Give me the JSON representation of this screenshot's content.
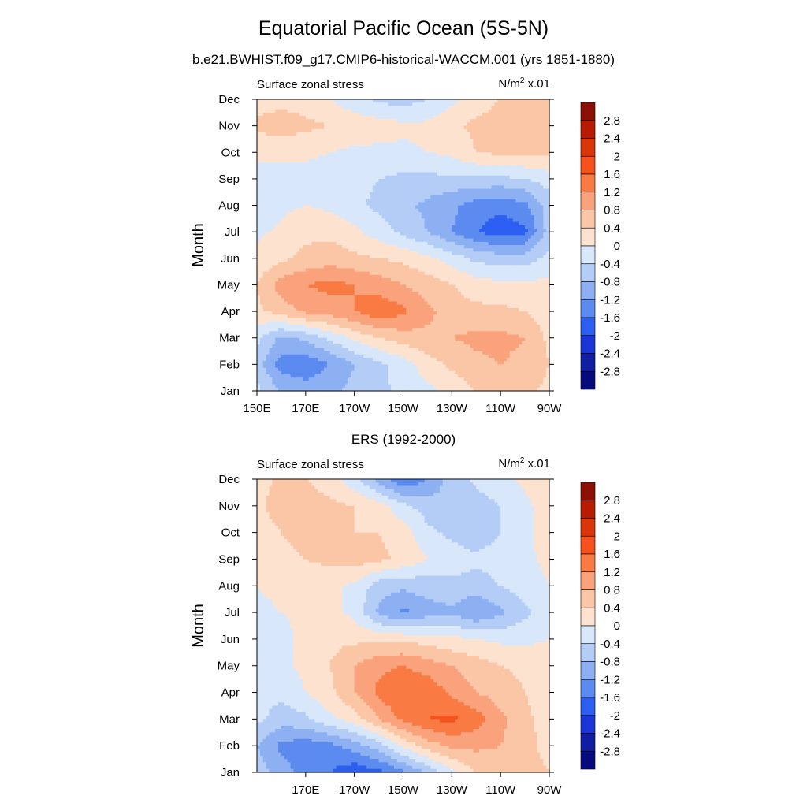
{
  "title": "Equatorial Pacific Ocean (5S-5N)",
  "subtitle": "b.e21.BWHIST.f09_g17.CMIP6-historical-WACCM.001 (yrs 1851-1880)",
  "panels": [
    {
      "title": "",
      "left_label": "Surface zonal stress",
      "right_label_base": "N/m",
      "right_label_sup": "2",
      "right_label_tail": " x.01",
      "ylabel": "Month"
    },
    {
      "title": "ERS (1992-2000)",
      "left_label": "Surface zonal stress",
      "right_label_base": "N/m",
      "right_label_sup": "2",
      "right_label_tail": " x.01",
      "ylabel": "Month"
    }
  ],
  "colorbar": {
    "labels": [
      "2.8",
      "2.4",
      "2",
      "1.6",
      "1.2",
      "0.8",
      "0.4",
      "0",
      "-0.4",
      "-0.8",
      "-1.2",
      "-1.6",
      "-2",
      "-2.4",
      "-2.8"
    ],
    "colors": [
      "#8b0f05",
      "#b71c00",
      "#d93609",
      "#f5521e",
      "#f97a43",
      "#f9a27c",
      "#fbc6a6",
      "#fde3cf",
      "#d8e7fa",
      "#b4cdf7",
      "#8cb0f2",
      "#5c8bf0",
      "#2d5ef2",
      "#1a36d9",
      "#0f1ea3",
      "#050b7a"
    ]
  },
  "chart_data": [
    {
      "type": "contour",
      "title": "Surface zonal stress",
      "units": "N/m2 x.01",
      "xlabel": "",
      "ylabel": "Month",
      "x_tick_labels": [
        "150E",
        "170E",
        "170W",
        "150W",
        "130W",
        "110W",
        "90W"
      ],
      "y_tick_labels": [
        "Jan",
        "Feb",
        "Mar",
        "Apr",
        "May",
        "Jun",
        "Jul",
        "Aug",
        "Sep",
        "Oct",
        "Nov",
        "Dec"
      ],
      "xlim_deg_east": [
        150,
        270
      ],
      "y_months": [
        1,
        12
      ],
      "levels": [
        -2.8,
        -2.4,
        -2,
        -1.6,
        -1.2,
        -0.8,
        -0.4,
        0,
        0.4,
        0.8,
        1.2,
        1.6,
        2,
        2.4,
        2.8
      ],
      "lon_deg_east": [
        150,
        160,
        170,
        180,
        190,
        200,
        210,
        220,
        230,
        240,
        250,
        260,
        270
      ],
      "grid": [
        [
          -0.3,
          -0.8,
          -1.0,
          -0.9,
          -0.7,
          -0.5,
          -0.3,
          -0.1,
          0.1,
          0.4,
          0.6,
          0.5,
          0.3
        ],
        [
          -0.6,
          -1.4,
          -1.5,
          -1.2,
          -0.8,
          -0.5,
          -0.2,
          0.2,
          0.5,
          0.7,
          0.8,
          0.7,
          0.4
        ],
        [
          -0.3,
          -0.9,
          -0.7,
          -0.3,
          0.1,
          0.4,
          0.6,
          0.7,
          0.8,
          0.9,
          0.9,
          0.8,
          0.3
        ],
        [
          0.3,
          0.6,
          0.9,
          1.0,
          1.2,
          1.5,
          1.3,
          0.9,
          0.6,
          0.5,
          0.5,
          0.4,
          0.2
        ],
        [
          0.4,
          1.0,
          1.2,
          1.3,
          1.2,
          1.0,
          0.8,
          0.6,
          0.4,
          0.2,
          0.1,
          0.1,
          0.1
        ],
        [
          0.1,
          0.3,
          0.5,
          0.6,
          0.5,
          0.4,
          0.3,
          0.1,
          -0.2,
          -0.5,
          -0.6,
          -0.6,
          -0.3
        ],
        [
          -0.1,
          0.1,
          0.3,
          0.3,
          0.1,
          -0.2,
          -0.5,
          -0.8,
          -1.2,
          -1.6,
          -1.8,
          -1.7,
          -0.6
        ],
        [
          -0.4,
          -0.1,
          0.0,
          -0.1,
          -0.3,
          -0.5,
          -0.7,
          -0.9,
          -1.1,
          -1.4,
          -1.5,
          -1.3,
          -0.6
        ],
        [
          -0.2,
          -0.2,
          -0.2,
          -0.2,
          -0.3,
          -0.4,
          -0.5,
          -0.5,
          -0.5,
          -0.5,
          -0.5,
          -0.4,
          -0.2
        ],
        [
          0.1,
          0.1,
          0.1,
          0.0,
          -0.1,
          -0.1,
          -0.1,
          0.0,
          0.1,
          0.4,
          0.5,
          0.5,
          0.5
        ],
        [
          0.5,
          0.6,
          0.5,
          0.4,
          0.3,
          0.2,
          0.1,
          0.1,
          0.3,
          0.5,
          0.6,
          0.6,
          0.6
        ],
        [
          0.2,
          0.3,
          0.2,
          0.0,
          -0.3,
          -0.5,
          -0.6,
          -0.4,
          -0.1,
          0.2,
          0.4,
          0.5,
          0.5
        ]
      ]
    },
    {
      "type": "contour",
      "title": "Surface zonal stress",
      "units": "N/m2 x.01",
      "xlabel": "",
      "ylabel": "Month",
      "x_tick_labels": [
        "170E",
        "170W",
        "150W",
        "130W",
        "110W",
        "90W"
      ],
      "y_tick_labels": [
        "Jan",
        "Feb",
        "Mar",
        "Apr",
        "May",
        "Jun",
        "Jul",
        "Aug",
        "Sep",
        "Oct",
        "Nov",
        "Dec"
      ],
      "xlim_deg_east": [
        150,
        270
      ],
      "y_months": [
        1,
        12
      ],
      "levels": [
        -2.8,
        -2.4,
        -2,
        -1.6,
        -1.2,
        -0.8,
        -0.4,
        0,
        0.4,
        0.8,
        1.2,
        1.6,
        2,
        2.4,
        2.8
      ],
      "lon_deg_east": [
        150,
        160,
        170,
        180,
        190,
        200,
        210,
        220,
        230,
        240,
        250,
        260,
        270
      ],
      "grid": [
        [
          -0.6,
          -1.0,
          -1.4,
          -1.6,
          -1.9,
          -1.7,
          -1.3,
          -0.7,
          -0.1,
          0.4,
          0.6,
          0.6,
          0.4
        ],
        [
          -0.8,
          -1.3,
          -1.4,
          -1.3,
          -1.0,
          -0.6,
          0.1,
          0.6,
          0.9,
          0.9,
          0.8,
          0.6,
          0.2
        ],
        [
          -0.3,
          -0.6,
          -0.5,
          -0.1,
          0.2,
          0.8,
          1.3,
          1.6,
          1.7,
          1.4,
          0.9,
          0.5,
          0.2
        ],
        [
          -0.2,
          -0.3,
          0.0,
          0.3,
          0.8,
          1.3,
          1.6,
          1.5,
          1.1,
          0.8,
          0.6,
          0.4,
          0.2
        ],
        [
          -0.1,
          -0.1,
          0.1,
          0.4,
          0.8,
          1.1,
          1.2,
          1.0,
          0.8,
          0.6,
          0.4,
          0.3,
          0.2
        ],
        [
          -0.2,
          -0.2,
          0.2,
          0.3,
          0.3,
          0.3,
          0.3,
          0.2,
          0.1,
          0.0,
          -0.1,
          -0.1,
          0.0
        ],
        [
          -0.1,
          0.0,
          0.1,
          0.1,
          -0.1,
          -0.9,
          -1.3,
          -1.0,
          -0.9,
          -1.2,
          -0.9,
          -0.5,
          -0.1
        ],
        [
          0.0,
          0.1,
          0.2,
          0.1,
          -0.1,
          -0.6,
          -0.7,
          -0.6,
          -0.5,
          -0.6,
          -0.4,
          -0.2,
          0.0
        ],
        [
          0.1,
          0.3,
          0.4,
          0.5,
          0.6,
          0.5,
          0.3,
          0.0,
          -0.2,
          -0.3,
          -0.2,
          -0.1,
          0.1
        ],
        [
          0.2,
          0.4,
          0.5,
          0.6,
          0.4,
          0.4,
          0.2,
          -0.3,
          -0.5,
          -0.7,
          -0.4,
          -0.1,
          0.2
        ],
        [
          0.3,
          0.6,
          0.6,
          0.5,
          0.4,
          0.2,
          -0.3,
          -0.6,
          -0.7,
          -0.6,
          -0.4,
          -0.1,
          0.2
        ],
        [
          0.2,
          0.5,
          0.4,
          0.2,
          -0.3,
          -1.0,
          -1.6,
          -1.2,
          -0.6,
          -0.3,
          -0.1,
          0.1,
          0.3
        ]
      ]
    }
  ]
}
